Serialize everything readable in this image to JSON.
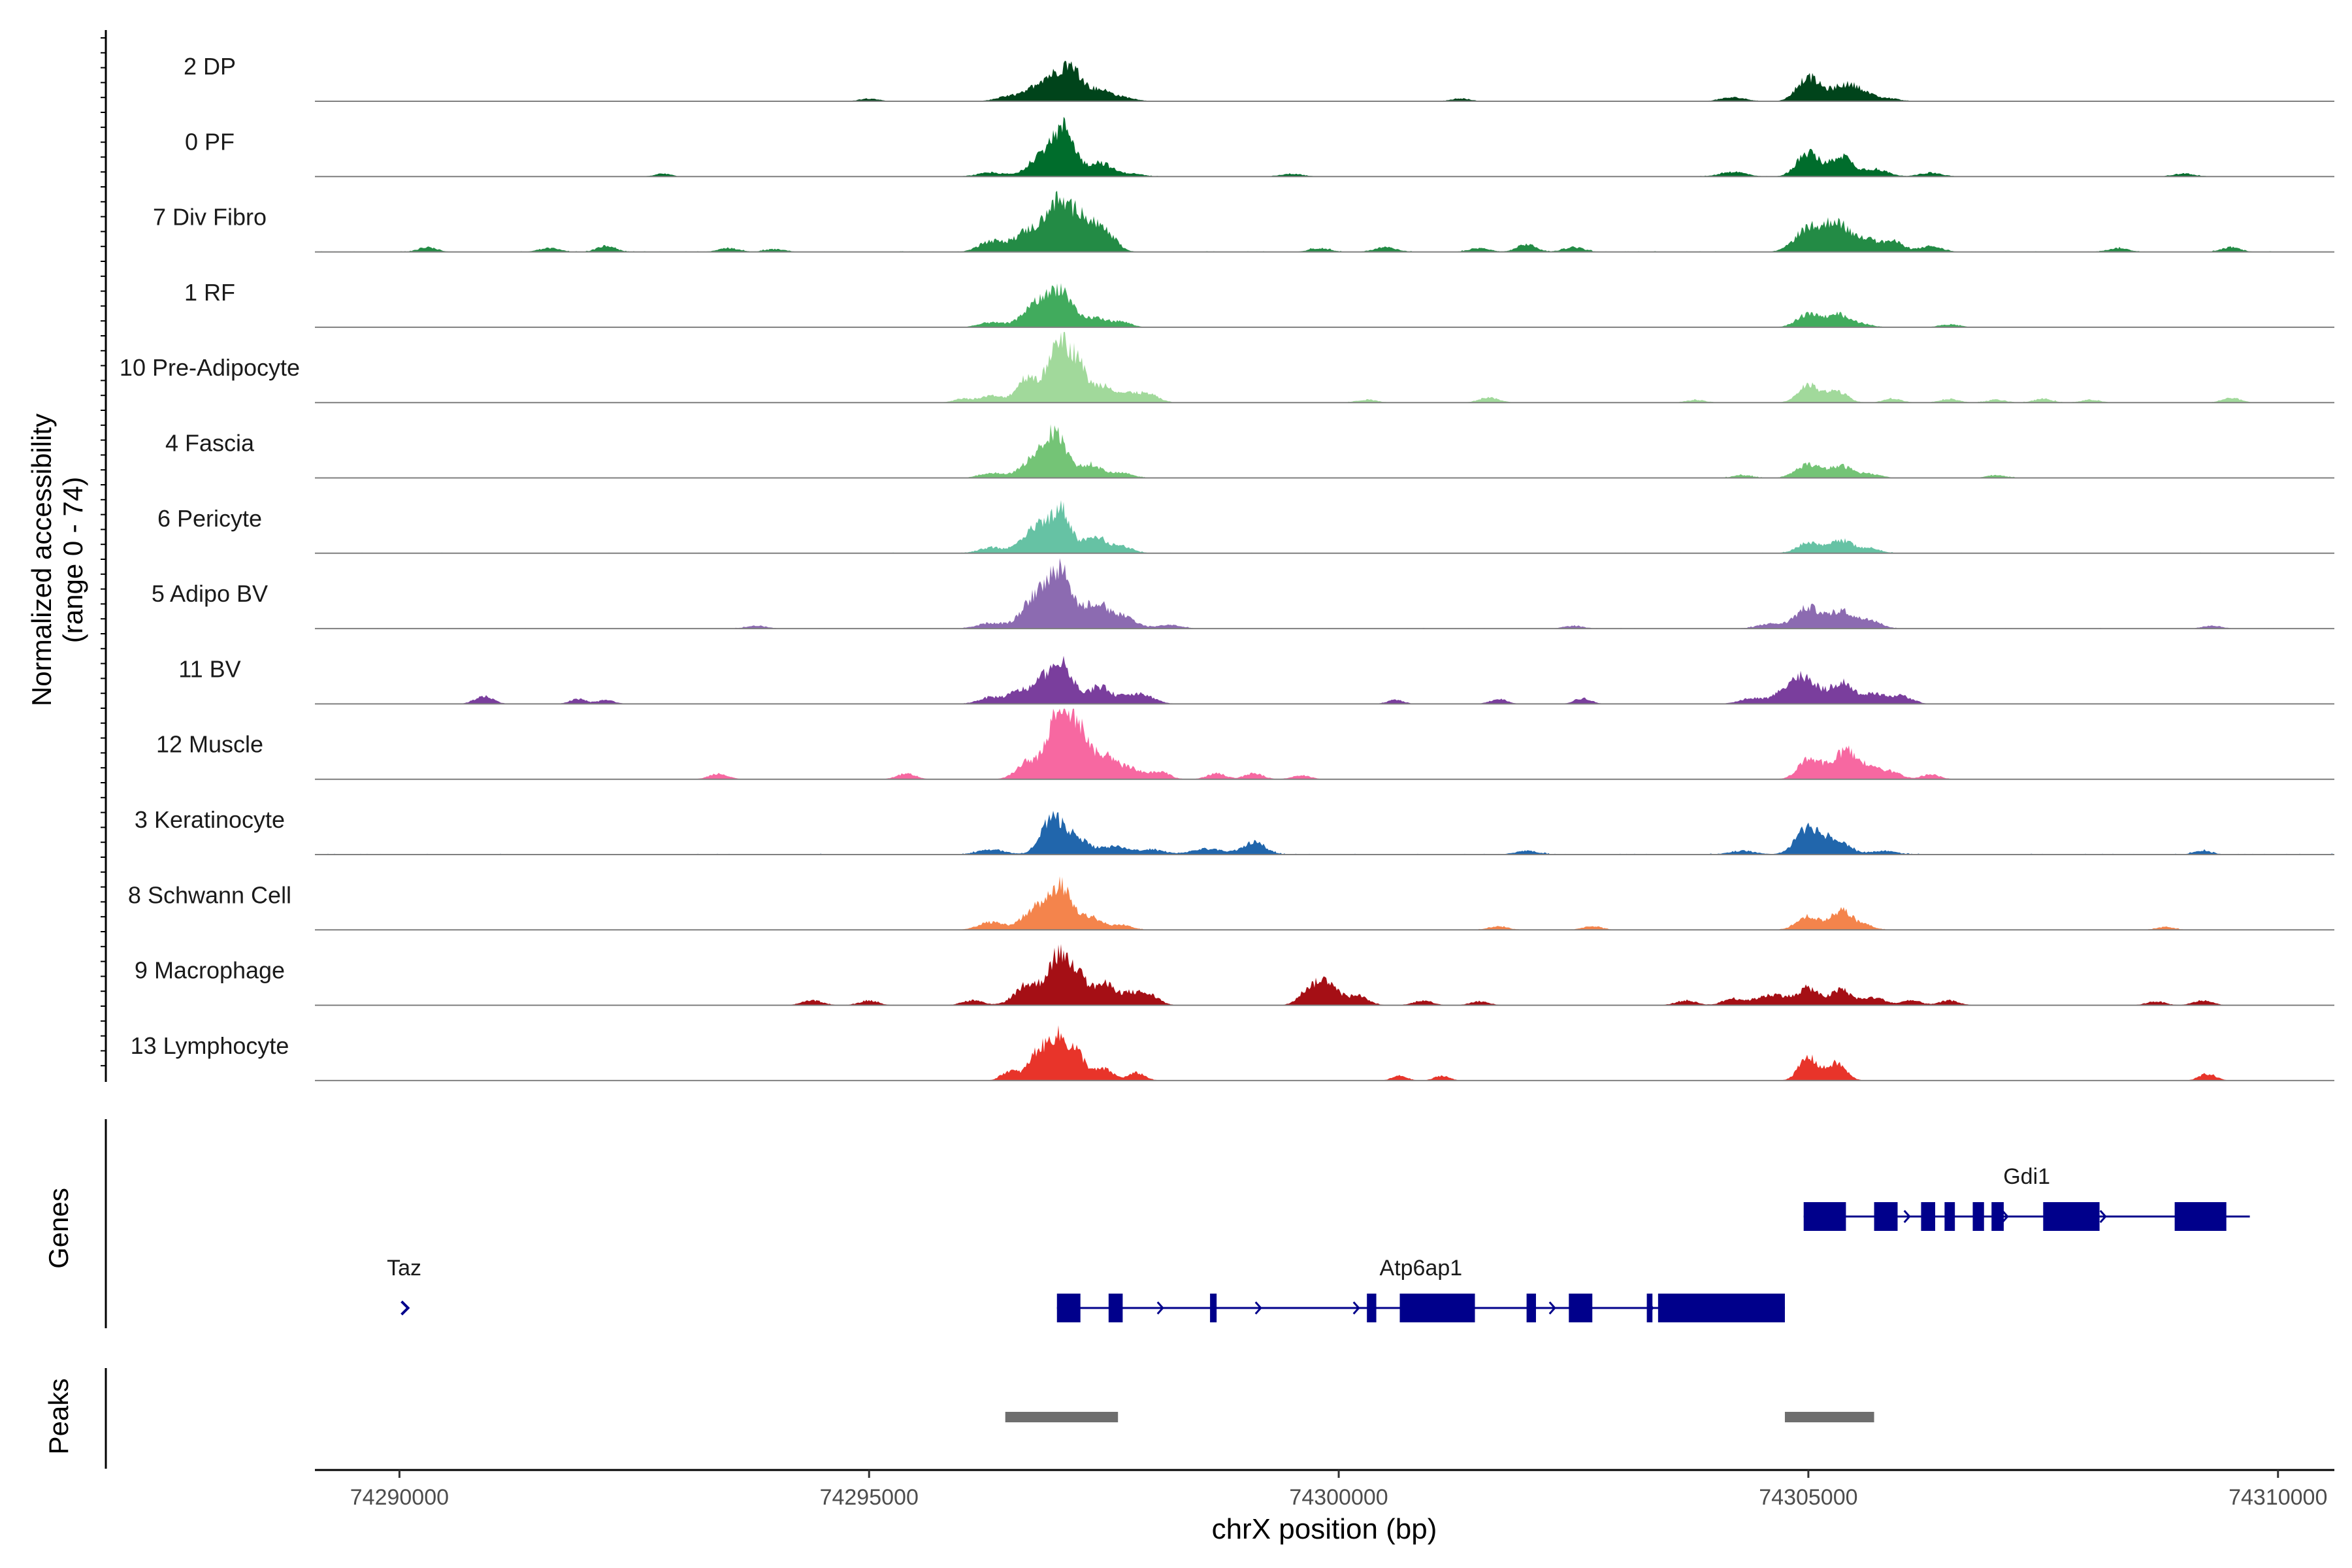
{
  "chart_data": {
    "type": "area",
    "title": "",
    "ylabel_line1": "Normalized accessibility",
    "ylabel_line2": "(range 0 - 74)",
    "y_range": [
      0,
      74
    ],
    "xlabel": "chrX position (bp)",
    "x_range": [
      74289100,
      74310600
    ],
    "x_ticks": [
      74290000,
      74295000,
      74300000,
      74305000,
      74310000
    ],
    "x_tick_labels": [
      "74290000",
      "74295000",
      "74300000",
      "74305000",
      "74310000"
    ],
    "tracks": [
      {
        "name": "2 DP",
        "color": "#00441b",
        "peaks": [
          [
            74295000,
            3,
            100
          ],
          [
            74296500,
            5,
            140
          ],
          [
            74296900,
            24,
            160
          ],
          [
            74297150,
            30,
            110
          ],
          [
            74297450,
            12,
            140
          ],
          [
            74297750,
            3,
            110
          ],
          [
            74301300,
            3,
            100
          ],
          [
            74304200,
            4,
            140
          ],
          [
            74305000,
            25,
            120
          ],
          [
            74305350,
            14,
            130
          ],
          [
            74305550,
            10,
            120
          ],
          [
            74305850,
            3,
            120
          ]
        ],
        "noise": 0.2
      },
      {
        "name": "0 PF",
        "color": "#006d2c",
        "peaks": [
          [
            74292800,
            3,
            90
          ],
          [
            74296300,
            4,
            150
          ],
          [
            74296900,
            28,
            160
          ],
          [
            74297100,
            38,
            100
          ],
          [
            74297450,
            15,
            130
          ],
          [
            74297800,
            3,
            120
          ],
          [
            74299500,
            3,
            120
          ],
          [
            74304200,
            5,
            140
          ],
          [
            74305000,
            25,
            120
          ],
          [
            74305350,
            22,
            110
          ],
          [
            74305700,
            8,
            140
          ],
          [
            74306300,
            4,
            120
          ],
          [
            74309000,
            3,
            120
          ]
        ],
        "noise": 0.5
      },
      {
        "name": "7 Div Fibro",
        "color": "#238b45",
        "peaks": [
          [
            74290300,
            5,
            100
          ],
          [
            74291600,
            4,
            110
          ],
          [
            74292200,
            6,
            100
          ],
          [
            74293500,
            4,
            110
          ],
          [
            74294000,
            3,
            110
          ],
          [
            74296300,
            11,
            130
          ],
          [
            74296700,
            22,
            150
          ],
          [
            74297000,
            48,
            120
          ],
          [
            74297250,
            36,
            110
          ],
          [
            74297500,
            22,
            120
          ],
          [
            74299800,
            4,
            110
          ],
          [
            74300500,
            5,
            120
          ],
          [
            74301500,
            4,
            110
          ],
          [
            74302000,
            8,
            100
          ],
          [
            74302500,
            5,
            110
          ],
          [
            74305000,
            25,
            140
          ],
          [
            74305300,
            30,
            120
          ],
          [
            74305600,
            14,
            120
          ],
          [
            74305900,
            11,
            110
          ],
          [
            74306300,
            6,
            120
          ],
          [
            74308300,
            4,
            110
          ],
          [
            74309500,
            5,
            100
          ]
        ],
        "noise": 0.8
      },
      {
        "name": "1 RF",
        "color": "#41ab5d",
        "peaks": [
          [
            74296300,
            5,
            130
          ],
          [
            74296800,
            26,
            150
          ],
          [
            74297050,
            34,
            110
          ],
          [
            74297400,
            10,
            140
          ],
          [
            74297700,
            5,
            100
          ],
          [
            74305000,
            14,
            120
          ],
          [
            74305300,
            13,
            110
          ],
          [
            74305550,
            4,
            120
          ],
          [
            74306500,
            3,
            110
          ]
        ],
        "noise": 0.3
      },
      {
        "name": "10 Pre-Adipocyte",
        "color": "#a1d99b",
        "peaks": [
          [
            74296000,
            4,
            100
          ],
          [
            74296300,
            7,
            110
          ],
          [
            74296700,
            28,
            120
          ],
          [
            74297000,
            64,
            90
          ],
          [
            74297200,
            45,
            100
          ],
          [
            74297500,
            18,
            120
          ],
          [
            74297800,
            9,
            110
          ],
          [
            74298000,
            7,
            100
          ],
          [
            74300300,
            3,
            110
          ],
          [
            74301600,
            5,
            110
          ],
          [
            74303800,
            3,
            100
          ],
          [
            74305000,
            18,
            110
          ],
          [
            74305300,
            12,
            110
          ],
          [
            74305900,
            4,
            100
          ],
          [
            74306500,
            4,
            100
          ],
          [
            74307000,
            3,
            100
          ],
          [
            74307500,
            4,
            100
          ],
          [
            74308000,
            3,
            100
          ],
          [
            74309500,
            5,
            100
          ]
        ],
        "noise": 0.5
      },
      {
        "name": "4 Fascia",
        "color": "#74c476",
        "peaks": [
          [
            74296300,
            5,
            130
          ],
          [
            74296800,
            24,
            150
          ],
          [
            74297000,
            36,
            110
          ],
          [
            74297350,
            14,
            130
          ],
          [
            74297700,
            5,
            110
          ],
          [
            74304300,
            3,
            100
          ],
          [
            74305000,
            14,
            130
          ],
          [
            74305350,
            12,
            120
          ],
          [
            74305650,
            4,
            120
          ],
          [
            74307000,
            3,
            100
          ]
        ],
        "noise": 0.6
      },
      {
        "name": "6 Pericyte",
        "color": "#66c2a4",
        "peaks": [
          [
            74296300,
            6,
            130
          ],
          [
            74296800,
            28,
            150
          ],
          [
            74297050,
            40,
            100
          ],
          [
            74297400,
            18,
            120
          ],
          [
            74297700,
            7,
            110
          ],
          [
            74305000,
            11,
            120
          ],
          [
            74305350,
            13,
            120
          ],
          [
            74305650,
            5,
            120
          ]
        ],
        "noise": 0.7
      },
      {
        "name": "5 Adipo BV",
        "color": "#8c6bb1",
        "peaks": [
          [
            74293800,
            3,
            110
          ],
          [
            74296300,
            6,
            140
          ],
          [
            74296800,
            36,
            150
          ],
          [
            74297050,
            55,
            110
          ],
          [
            74297400,
            26,
            130
          ],
          [
            74297700,
            12,
            140
          ],
          [
            74298200,
            4,
            120
          ],
          [
            74302500,
            3,
            100
          ],
          [
            74304600,
            5,
            140
          ],
          [
            74305000,
            22,
            130
          ],
          [
            74305350,
            18,
            120
          ],
          [
            74305650,
            9,
            120
          ],
          [
            74309300,
            3,
            100
          ]
        ],
        "noise": 0.6
      },
      {
        "name": "11 BV",
        "color": "#7a3e9d",
        "peaks": [
          [
            74290900,
            8,
            100
          ],
          [
            74291900,
            5,
            90
          ],
          [
            74292200,
            4,
            90
          ],
          [
            74296300,
            7,
            130
          ],
          [
            74296600,
            12,
            110
          ],
          [
            74296900,
            30,
            130
          ],
          [
            74297100,
            30,
            100
          ],
          [
            74297450,
            18,
            120
          ],
          [
            74297800,
            10,
            120
          ],
          [
            74298000,
            5,
            100
          ],
          [
            74300600,
            4,
            90
          ],
          [
            74301700,
            5,
            90
          ],
          [
            74302600,
            6,
            90
          ],
          [
            74304400,
            6,
            130
          ],
          [
            74304800,
            18,
            130
          ],
          [
            74305000,
            22,
            120
          ],
          [
            74305350,
            22,
            120
          ],
          [
            74305700,
            10,
            130
          ],
          [
            74306000,
            8,
            110
          ]
        ],
        "noise": 0.4
      },
      {
        "name": "12 Muscle",
        "color": "#f768a1",
        "peaks": [
          [
            74293400,
            6,
            100
          ],
          [
            74295400,
            6,
            100
          ],
          [
            74296700,
            20,
            120
          ],
          [
            74297000,
            70,
            100
          ],
          [
            74297200,
            55,
            110
          ],
          [
            74297500,
            25,
            130
          ],
          [
            74297800,
            10,
            120
          ],
          [
            74298100,
            8,
            100
          ],
          [
            74298700,
            6,
            100
          ],
          [
            74299100,
            6,
            100
          ],
          [
            74299600,
            4,
            100
          ],
          [
            74305000,
            20,
            110
          ],
          [
            74305200,
            10,
            100
          ],
          [
            74305400,
            28,
            100
          ],
          [
            74305650,
            15,
            110
          ],
          [
            74305900,
            7,
            100
          ],
          [
            74306300,
            5,
            100
          ]
        ],
        "noise": 0.2
      },
      {
        "name": "3 Keratinocyte",
        "color": "#2166ac",
        "peaks": [
          [
            74296300,
            5,
            150
          ],
          [
            74296950,
            36,
            120
          ],
          [
            74297200,
            16,
            130
          ],
          [
            74297600,
            8,
            150
          ],
          [
            74298000,
            5,
            140
          ],
          [
            74298600,
            6,
            170
          ],
          [
            74299100,
            13,
            120
          ],
          [
            74302000,
            4,
            120
          ],
          [
            74304300,
            4,
            140
          ],
          [
            74305000,
            28,
            130
          ],
          [
            74305300,
            15,
            130
          ],
          [
            74305800,
            4,
            130
          ],
          [
            74309200,
            4,
            100
          ]
        ],
        "noise": 1.0
      },
      {
        "name": "8 Schwann Cell",
        "color": "#f4844c",
        "peaks": [
          [
            74296300,
            8,
            130
          ],
          [
            74296800,
            24,
            150
          ],
          [
            74297050,
            40,
            110
          ],
          [
            74297350,
            14,
            120
          ],
          [
            74297700,
            5,
            110
          ],
          [
            74301700,
            4,
            100
          ],
          [
            74302700,
            4,
            100
          ],
          [
            74305000,
            14,
            120
          ],
          [
            74305350,
            20,
            110
          ],
          [
            74305600,
            5,
            100
          ],
          [
            74308800,
            3,
            100
          ]
        ],
        "noise": 0.5
      },
      {
        "name": "9 Macrophage",
        "color": "#a50f15",
        "peaks": [
          [
            74294400,
            5,
            110
          ],
          [
            74295000,
            5,
            100
          ],
          [
            74296100,
            5,
            110
          ],
          [
            74296700,
            22,
            140
          ],
          [
            74297000,
            46,
            100
          ],
          [
            74297200,
            34,
            100
          ],
          [
            74297500,
            22,
            120
          ],
          [
            74297800,
            12,
            110
          ],
          [
            74298000,
            9,
            100
          ],
          [
            74299700,
            18,
            110
          ],
          [
            74299900,
            22,
            100
          ],
          [
            74300200,
            10,
            110
          ],
          [
            74300900,
            5,
            100
          ],
          [
            74301500,
            4,
            100
          ],
          [
            74303700,
            5,
            110
          ],
          [
            74304200,
            7,
            110
          ],
          [
            74304500,
            7,
            110
          ],
          [
            74304700,
            9,
            110
          ],
          [
            74305000,
            18,
            110
          ],
          [
            74305350,
            16,
            110
          ],
          [
            74305700,
            8,
            120
          ],
          [
            74306100,
            5,
            100
          ],
          [
            74306500,
            5,
            100
          ],
          [
            74308700,
            4,
            100
          ],
          [
            74309200,
            5,
            100
          ]
        ],
        "noise": 0.3
      },
      {
        "name": "13 Lymphocyte",
        "color": "#e8342a",
        "peaks": [
          [
            74296500,
            10,
            90
          ],
          [
            74296800,
            30,
            100
          ],
          [
            74297000,
            40,
            90
          ],
          [
            74297200,
            30,
            100
          ],
          [
            74297500,
            12,
            100
          ],
          [
            74297850,
            8,
            90
          ],
          [
            74300650,
            5,
            80
          ],
          [
            74301100,
            5,
            80
          ],
          [
            74305000,
            24,
            100
          ],
          [
            74305300,
            18,
            100
          ],
          [
            74309250,
            7,
            90
          ]
        ],
        "noise": 0
      }
    ],
    "genes_label": "Genes",
    "genes": [
      {
        "name": "Gdi1",
        "strand": "+",
        "start": 74304950,
        "end": 74309700,
        "row": 0,
        "exons": [
          [
            74304950,
            74305400
          ],
          [
            74305700,
            74305950
          ],
          [
            74306200,
            74306350
          ],
          [
            74306450,
            74306560
          ],
          [
            74306750,
            74306870
          ],
          [
            74306950,
            74307080
          ],
          [
            74307500,
            74308100
          ],
          [
            74308900,
            74309450
          ]
        ]
      },
      {
        "name": "Taz",
        "strand": "+",
        "start": 74290050,
        "end": 74290130,
        "row": 1,
        "exons": []
      },
      {
        "name": "Atp6ap1",
        "strand": "+",
        "start": 74297000,
        "end": 74304750,
        "row": 1,
        "exons": [
          [
            74297000,
            74297250
          ],
          [
            74297550,
            74297700
          ],
          [
            74298630,
            74298700
          ],
          [
            74300300,
            74300400
          ],
          [
            74300650,
            74301450
          ],
          [
            74302000,
            74302100
          ],
          [
            74302450,
            74302700
          ],
          [
            74303280,
            74303340
          ],
          [
            74303400,
            74304750
          ]
        ]
      }
    ],
    "peaks_label": "Peaks",
    "peak_regions": [
      [
        74296450,
        74297650
      ],
      [
        74304750,
        74305700
      ]
    ]
  }
}
